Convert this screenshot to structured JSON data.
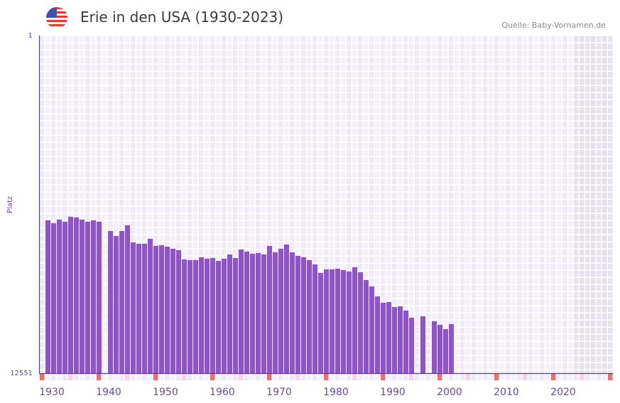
{
  "header": {
    "title": "Erie in den USA (1930-2023)",
    "source": "Quelle: Baby-Vornamen.de",
    "flag_icon": "usa-flag-icon"
  },
  "chart_data": {
    "type": "bar",
    "title": "Erie in den USA (1930-2023)",
    "xlabel": "",
    "ylabel": "Platz",
    "y_inverted": true,
    "ylim": [
      1,
      12551
    ],
    "y_ticks": [
      "1",
      "12551"
    ],
    "x_range": [
      1930,
      2030
    ],
    "x_ticks": [
      "1930",
      "1940",
      "1950",
      "1960",
      "1970",
      "1980",
      "1990",
      "2000",
      "2010",
      "2020"
    ],
    "no_data_from": 2024,
    "grid": true,
    "colors": {
      "bar": "#8e55c7",
      "axis": "#5a3a9a",
      "decade_marker": "#e57373",
      "half_decade_marker": "#f6d6e0"
    },
    "series": [
      {
        "name": "Erie",
        "years": [
          1930,
          1931,
          1932,
          1933,
          1934,
          1935,
          1936,
          1937,
          1938,
          1939,
          1940,
          1941,
          1942,
          1943,
          1944,
          1945,
          1946,
          1947,
          1948,
          1949,
          1950,
          1951,
          1952,
          1953,
          1954,
          1955,
          1956,
          1957,
          1958,
          1959,
          1960,
          1961,
          1962,
          1963,
          1964,
          1965,
          1966,
          1967,
          1968,
          1969,
          1970,
          1971,
          1972,
          1973,
          1974,
          1975,
          1976,
          1977,
          1978,
          1979,
          1980,
          1981,
          1982,
          1983,
          1984,
          1985,
          1986,
          1987,
          1988,
          1989,
          1990,
          1991,
          1992,
          1993,
          1994,
          1995,
          1996,
          1997,
          1998,
          1999,
          2000,
          2001,
          2002,
          2003,
          2004,
          2005,
          2006,
          2007,
          2008,
          2009,
          2010,
          2011,
          2012,
          2013,
          2014,
          2015,
          2016,
          2017,
          2018,
          2019,
          2020,
          2021,
          2022,
          2023
        ],
        "values": [
          null,
          6870,
          6975,
          6843,
          6922,
          6737,
          6764,
          6843,
          6922,
          6870,
          6922,
          null,
          7266,
          7451,
          7266,
          7054,
          7689,
          7741,
          7741,
          7556,
          7821,
          7794,
          7847,
          7926,
          7979,
          8323,
          8349,
          8349,
          8243,
          8296,
          8270,
          8376,
          8296,
          8138,
          8270,
          7953,
          8032,
          8112,
          8085,
          8138,
          7821,
          8058,
          7926,
          7768,
          8058,
          8191,
          8243,
          8349,
          8508,
          8825,
          8693,
          8693,
          8667,
          8720,
          8772,
          8614,
          8799,
          9090,
          9327,
          9697,
          9935,
          9909,
          10093,
          10067,
          10226,
          10490,
          null,
          10437,
          null,
          10622,
          10754,
          10912,
          10728,
          null,
          null,
          null,
          null,
          null,
          null,
          null,
          null,
          null,
          null,
          null,
          null,
          null,
          null,
          null,
          null,
          null,
          null,
          null,
          null,
          null
        ]
      }
    ]
  }
}
